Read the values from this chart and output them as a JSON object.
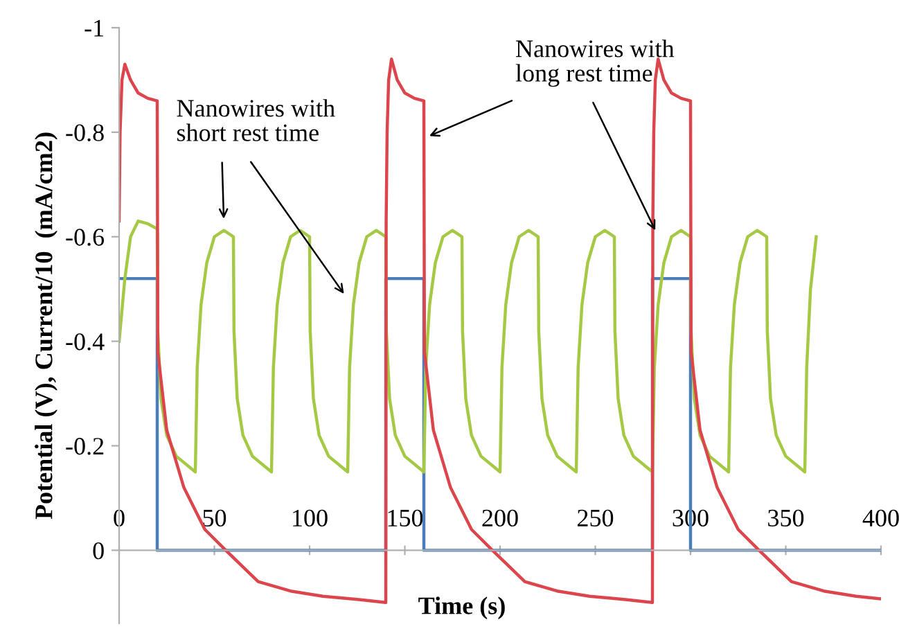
{
  "chart_data": {
    "type": "line",
    "xlabel": "Time (s)",
    "ylabel": "Potential (V), Current/10  (mA/cm2)",
    "xlim": [
      0,
      400
    ],
    "xticks": [
      0,
      50,
      100,
      150,
      200,
      250,
      300,
      350,
      400
    ],
    "ylim": [
      0.14,
      -1
    ],
    "yticks": [
      -1,
      -0.8,
      -0.6,
      -0.4,
      -0.2,
      0
    ],
    "grid": false,
    "marker": "none",
    "line_style": "solid",
    "series": [
      {
        "color": "#4a7ebb",
        "x": [
          0,
          20,
          20,
          140,
          140,
          160,
          160,
          280,
          280,
          300,
          300,
          400
        ],
        "values": [
          -0.52,
          -0.52,
          0,
          0,
          -0.52,
          -0.52,
          0,
          0,
          -0.52,
          -0.52,
          0,
          0
        ]
      },
      {
        "color": "#a5c945",
        "x": [
          0,
          3,
          6,
          10,
          15,
          20,
          20.3,
          22,
          25,
          30,
          40,
          41,
          43,
          46,
          50,
          55,
          60,
          60.3,
          62,
          65,
          70,
          80,
          81,
          83,
          86,
          90,
          95,
          100,
          100.3,
          102,
          105,
          110,
          120,
          121,
          123,
          126,
          130,
          135,
          140,
          140.3,
          142,
          145,
          150,
          160,
          161,
          163,
          166,
          170,
          175,
          180,
          180.3,
          182,
          185,
          190,
          200,
          201,
          203,
          206,
          210,
          215,
          220,
          220.3,
          222,
          225,
          230,
          240,
          241,
          243,
          246,
          250,
          255,
          260,
          260.3,
          262,
          265,
          270,
          280,
          281,
          283,
          286,
          290,
          295,
          300,
          300.3,
          302,
          305,
          310,
          320,
          321,
          323,
          326,
          330,
          335,
          340,
          340.3,
          342,
          345,
          350,
          360,
          361,
          363,
          366
        ],
        "values": [
          -0.4,
          -0.52,
          -0.6,
          -0.63,
          -0.625,
          -0.615,
          -0.42,
          -0.29,
          -0.22,
          -0.18,
          -0.15,
          -0.35,
          -0.47,
          -0.55,
          -0.6,
          -0.612,
          -0.6,
          -0.42,
          -0.29,
          -0.22,
          -0.18,
          -0.15,
          -0.35,
          -0.47,
          -0.55,
          -0.6,
          -0.612,
          -0.6,
          -0.42,
          -0.29,
          -0.22,
          -0.18,
          -0.15,
          -0.35,
          -0.47,
          -0.55,
          -0.6,
          -0.612,
          -0.6,
          -0.42,
          -0.29,
          -0.22,
          -0.18,
          -0.15,
          -0.35,
          -0.47,
          -0.55,
          -0.6,
          -0.612,
          -0.6,
          -0.42,
          -0.29,
          -0.22,
          -0.18,
          -0.15,
          -0.35,
          -0.47,
          -0.55,
          -0.6,
          -0.612,
          -0.6,
          -0.42,
          -0.29,
          -0.22,
          -0.18,
          -0.15,
          -0.35,
          -0.47,
          -0.55,
          -0.6,
          -0.612,
          -0.6,
          -0.42,
          -0.29,
          -0.22,
          -0.18,
          -0.15,
          -0.35,
          -0.47,
          -0.55,
          -0.6,
          -0.612,
          -0.6,
          -0.42,
          -0.29,
          -0.22,
          -0.18,
          -0.15,
          -0.35,
          -0.47,
          -0.55,
          -0.6,
          -0.612,
          -0.6,
          -0.42,
          -0.29,
          -0.22,
          -0.18,
          -0.15,
          -0.35,
          -0.5,
          -0.6
        ]
      },
      {
        "color": "#dc454c",
        "x": [
          0,
          0.5,
          1.5,
          3,
          6,
          10,
          15,
          20,
          20.3,
          25,
          34,
          45,
          56,
          73,
          90,
          107,
          125,
          140,
          140.2,
          140.7,
          141.5,
          143,
          146,
          150,
          155,
          160,
          160.3,
          165,
          174,
          185,
          196,
          213,
          230,
          247,
          265,
          280,
          280.2,
          280.7,
          281.5,
          283,
          286,
          290,
          295,
          300,
          300.3,
          305,
          314,
          325,
          336,
          353,
          370,
          387,
          400
        ],
        "values": [
          -0.63,
          -0.8,
          -0.9,
          -0.93,
          -0.9,
          -0.875,
          -0.865,
          -0.86,
          -0.38,
          -0.23,
          -0.12,
          -0.04,
          0,
          0.06,
          0.078,
          0.088,
          0.094,
          0.1,
          -0.63,
          -0.8,
          -0.9,
          -0.94,
          -0.9,
          -0.875,
          -0.865,
          -0.86,
          -0.38,
          -0.23,
          -0.12,
          -0.04,
          0,
          0.06,
          0.078,
          0.088,
          0.094,
          0.1,
          -0.63,
          -0.8,
          -0.9,
          -0.94,
          -0.9,
          -0.875,
          -0.865,
          -0.86,
          -0.38,
          -0.23,
          -0.12,
          -0.04,
          0,
          0.06,
          0.078,
          0.088,
          0.093
        ]
      }
    ],
    "annotations": [
      {
        "text": "Nanowires with\nshort rest time",
        "x": 55,
        "y": -0.627
      },
      {
        "text": "Nanowires with\nlong rest time",
        "x": 161,
        "y": -0.79
      }
    ]
  }
}
